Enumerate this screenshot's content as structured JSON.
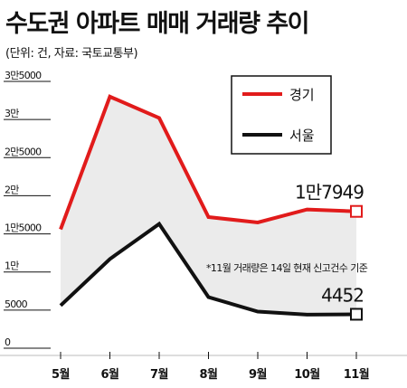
{
  "title": "수도권 아파트 매매 거래량 추이",
  "subtitle": "(단위: 건, 자료: 국토교통부)",
  "note": "*11월 거래량은 14일 현재 신고건수 기준",
  "colors": {
    "gyeonggi": "#e11b1b",
    "seoul": "#111111",
    "area": "#ebebeb"
  },
  "chart_data": {
    "type": "line",
    "title": "수도권 아파트 매매 거래량 추이",
    "categories": [
      "5월",
      "6월",
      "7월",
      "8월",
      "9월",
      "10월",
      "11월"
    ],
    "ylim": [
      0,
      35000
    ],
    "yticks": [
      {
        "value": 0,
        "label": "0"
      },
      {
        "value": 5000,
        "label": "5000"
      },
      {
        "value": 10000,
        "label": "1만"
      },
      {
        "value": 15000,
        "label": "1만5000"
      },
      {
        "value": 20000,
        "label": "2만"
      },
      {
        "value": 25000,
        "label": "2만5000"
      },
      {
        "value": 30000,
        "label": "3만"
      },
      {
        "value": 35000,
        "label": "3만5000"
      }
    ],
    "series": [
      {
        "name": "경기",
        "color": "#e11b1b",
        "values": [
          15600,
          33000,
          30200,
          17200,
          16500,
          18200,
          17949
        ],
        "end_label": "1만7949"
      },
      {
        "name": "서울",
        "color": "#111111",
        "values": [
          5600,
          11700,
          16300,
          6700,
          4800,
          4400,
          4452
        ],
        "end_label": "4452"
      }
    ],
    "legend": "top-right",
    "grid": false
  }
}
